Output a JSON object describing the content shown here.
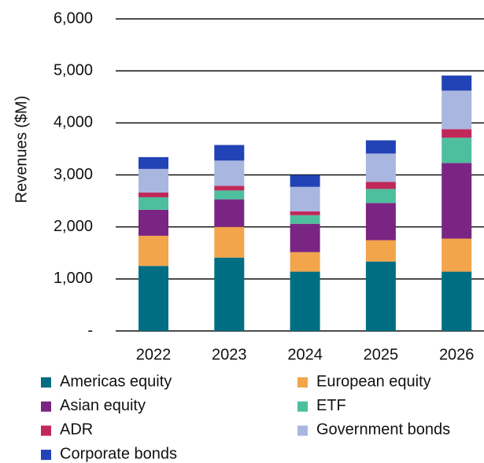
{
  "chart_data": {
    "type": "stacked_bar",
    "y_label": "Revenues ($M)",
    "categories": [
      "2022",
      "2023",
      "2024",
      "2025",
      "2026"
    ],
    "series": [
      {
        "name": "Americas equity",
        "color": "#006e82",
        "values": [
          1250,
          1410,
          1140,
          1335,
          1140
        ]
      },
      {
        "name": "European equity",
        "color": "#f2a54a",
        "values": [
          580,
          590,
          375,
          410,
          635
        ]
      },
      {
        "name": "Asian equity",
        "color": "#7a2583",
        "values": [
          500,
          530,
          545,
          715,
          1455
        ]
      },
      {
        "name": "ETF",
        "color": "#4dbf9e",
        "values": [
          240,
          170,
          165,
          270,
          485
        ]
      },
      {
        "name": "ADR",
        "color": "#c0285a",
        "values": [
          90,
          90,
          75,
          135,
          165
        ]
      },
      {
        "name": "Government bonds",
        "color": "#a9b6e0",
        "values": [
          455,
          485,
          470,
          545,
          740
        ]
      },
      {
        "name": "Corporate bonds",
        "color": "#2243b6",
        "values": [
          227,
          300,
          227,
          255,
          290
        ]
      }
    ],
    "ylim": [
      0,
      6000
    ],
    "yticks": [
      {
        "value": 0,
        "label": "-"
      },
      {
        "value": 1000,
        "label": "1,000"
      },
      {
        "value": 2000,
        "label": "2,000"
      },
      {
        "value": 3000,
        "label": "3,000"
      },
      {
        "value": 4000,
        "label": "4,000"
      },
      {
        "value": 5000,
        "label": "5,000"
      },
      {
        "value": 6000,
        "label": "6,000"
      }
    ],
    "grid": true
  }
}
